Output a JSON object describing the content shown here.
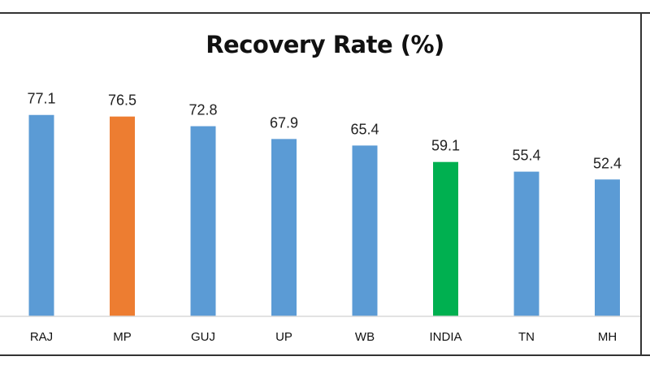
{
  "chart_data": {
    "type": "bar",
    "title": "Recovery Rate (%)",
    "categories": [
      "RAJ",
      "MP",
      "GUJ",
      "UP",
      "WB",
      "INDIA",
      "TN",
      "MH"
    ],
    "values": [
      77.1,
      76.5,
      72.8,
      67.9,
      65.4,
      59.1,
      55.4,
      52.4
    ],
    "bar_colors": [
      "#5b9bd5",
      "#ed7d31",
      "#5b9bd5",
      "#5b9bd5",
      "#5b9bd5",
      "#00b050",
      "#5b9bd5",
      "#5b9bd5"
    ],
    "xlabel": "",
    "ylabel": "",
    "ylim": [
      0,
      86
    ],
    "grid": false,
    "legend": "none",
    "data_labels": true
  }
}
